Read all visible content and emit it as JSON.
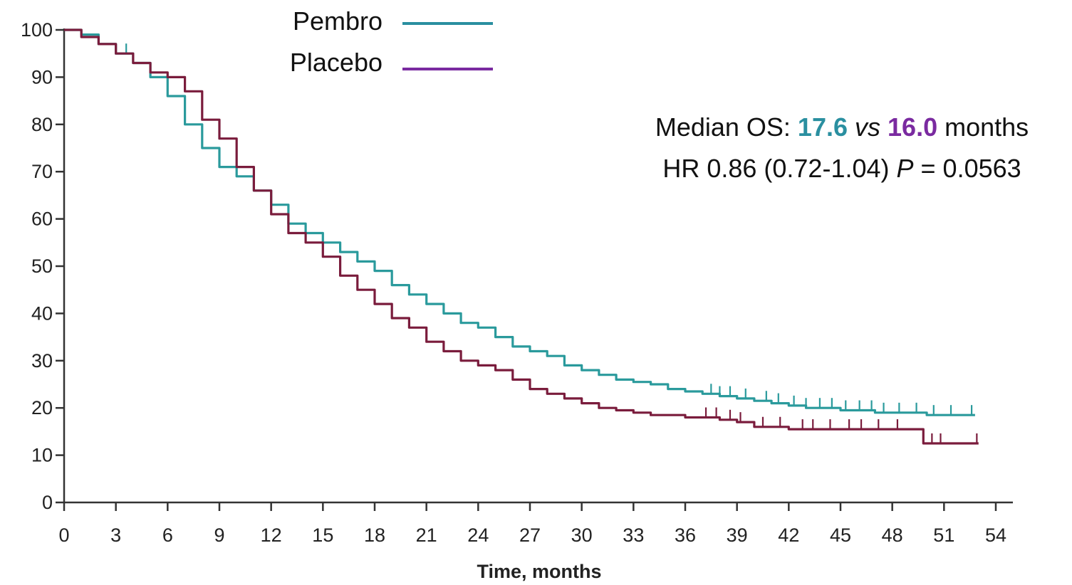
{
  "chart_data": {
    "type": "line",
    "xlabel": "Time, months",
    "ylabel": "",
    "xlim": [
      0,
      54
    ],
    "ylim": [
      0,
      100
    ],
    "x_ticks": [
      0,
      3,
      6,
      9,
      12,
      15,
      18,
      21,
      24,
      27,
      30,
      33,
      36,
      39,
      42,
      45,
      48,
      51,
      54
    ],
    "y_ticks": [
      0,
      10,
      20,
      30,
      40,
      50,
      60,
      70,
      80,
      90,
      100
    ],
    "grid": false,
    "legend_position": "top-center",
    "series": [
      {
        "name": "Pembro",
        "color": "#2a9a9c",
        "points": [
          [
            0,
            100
          ],
          [
            1,
            99
          ],
          [
            2,
            97
          ],
          [
            3,
            95
          ],
          [
            4,
            93
          ],
          [
            5,
            90
          ],
          [
            6,
            86
          ],
          [
            7,
            80
          ],
          [
            8,
            75
          ],
          [
            9,
            71
          ],
          [
            10,
            69
          ],
          [
            11,
            66
          ],
          [
            12,
            63
          ],
          [
            13,
            59
          ],
          [
            14,
            57
          ],
          [
            15,
            55
          ],
          [
            16,
            53
          ],
          [
            17,
            51
          ],
          [
            18,
            49
          ],
          [
            19,
            46
          ],
          [
            20,
            44
          ],
          [
            21,
            42
          ],
          [
            22,
            40
          ],
          [
            23,
            38
          ],
          [
            24,
            37
          ],
          [
            25,
            35
          ],
          [
            26,
            33
          ],
          [
            27,
            32
          ],
          [
            28,
            31
          ],
          [
            29,
            29
          ],
          [
            30,
            28
          ],
          [
            31,
            27
          ],
          [
            32,
            26
          ],
          [
            33,
            25.5
          ],
          [
            34,
            25
          ],
          [
            35,
            24
          ],
          [
            36,
            23.5
          ],
          [
            37,
            23
          ],
          [
            38,
            22.5
          ],
          [
            39,
            22
          ],
          [
            40,
            21.5
          ],
          [
            41,
            21
          ],
          [
            42,
            20.5
          ],
          [
            43,
            20
          ],
          [
            44,
            20
          ],
          [
            45,
            19.5
          ],
          [
            46,
            19.5
          ],
          [
            47,
            19
          ],
          [
            48,
            19
          ],
          [
            49,
            19
          ],
          [
            50,
            18.5
          ],
          [
            51,
            18.5
          ],
          [
            52,
            18.5
          ],
          [
            52.8,
            18.5
          ]
        ],
        "censor_marks": [
          3.6,
          37.5,
          38,
          38.6,
          39.5,
          40.7,
          41.4,
          42.3,
          43,
          43.8,
          44.5,
          45.3,
          46.1,
          46.8,
          47.5,
          48.4,
          49.4,
          50.4,
          51.4,
          52.6
        ]
      },
      {
        "name": "Placebo",
        "color": "#7a1c3c",
        "points": [
          [
            0,
            100
          ],
          [
            1,
            98.5
          ],
          [
            2,
            97
          ],
          [
            3,
            95
          ],
          [
            4,
            93
          ],
          [
            5,
            91
          ],
          [
            6,
            90
          ],
          [
            7,
            87
          ],
          [
            8,
            81
          ],
          [
            9,
            77
          ],
          [
            10,
            71
          ],
          [
            11,
            66
          ],
          [
            12,
            61
          ],
          [
            13,
            57
          ],
          [
            14,
            55
          ],
          [
            15,
            52
          ],
          [
            16,
            48
          ],
          [
            17,
            45
          ],
          [
            18,
            42
          ],
          [
            19,
            39
          ],
          [
            20,
            37
          ],
          [
            21,
            34
          ],
          [
            22,
            32
          ],
          [
            23,
            30
          ],
          [
            24,
            29
          ],
          [
            25,
            28
          ],
          [
            26,
            26
          ],
          [
            27,
            24
          ],
          [
            28,
            23
          ],
          [
            29,
            22
          ],
          [
            30,
            21
          ],
          [
            31,
            20
          ],
          [
            32,
            19.5
          ],
          [
            33,
            19
          ],
          [
            34,
            18.5
          ],
          [
            35,
            18.5
          ],
          [
            36,
            18
          ],
          [
            37,
            18
          ],
          [
            38,
            17.5
          ],
          [
            39,
            17
          ],
          [
            40,
            16
          ],
          [
            41,
            16
          ],
          [
            42,
            15.5
          ],
          [
            43,
            15.5
          ],
          [
            44,
            15.5
          ],
          [
            45,
            15.5
          ],
          [
            46,
            15.5
          ],
          [
            47,
            15.5
          ],
          [
            48,
            15.5
          ],
          [
            49,
            15.5
          ],
          [
            49.8,
            15.5
          ],
          [
            49.8,
            12.5
          ],
          [
            51,
            12.5
          ],
          [
            52,
            12.5
          ],
          [
            53,
            12.5
          ]
        ],
        "censor_marks": [
          37.2,
          37.8,
          38.6,
          39.2,
          40.5,
          41.5,
          42.8,
          43.4,
          44.4,
          45.5,
          46.2,
          47.2,
          48.3,
          50.3,
          50.8,
          52.9
        ]
      }
    ],
    "annotations": {
      "line1": {
        "prefix": "Median OS: ",
        "pembro_value": "17.6",
        "vs": "vs",
        "placebo_value": "16.0",
        "suffix": " months"
      },
      "line2": {
        "prefix": "HR 0.86 (0.72-1.04) ",
        "p": "P",
        "suffix": " = 0.0563"
      }
    }
  },
  "colors": {
    "pembro": "#2a9a9c",
    "placebo": "#7a1c3c",
    "pembro_text": "#2a8fa0",
    "placebo_text": "#7a2aa0",
    "legend_line_pembro": "#2a8fa0",
    "legend_line_placebo": "#7a2aa0",
    "axis": "#333333"
  }
}
